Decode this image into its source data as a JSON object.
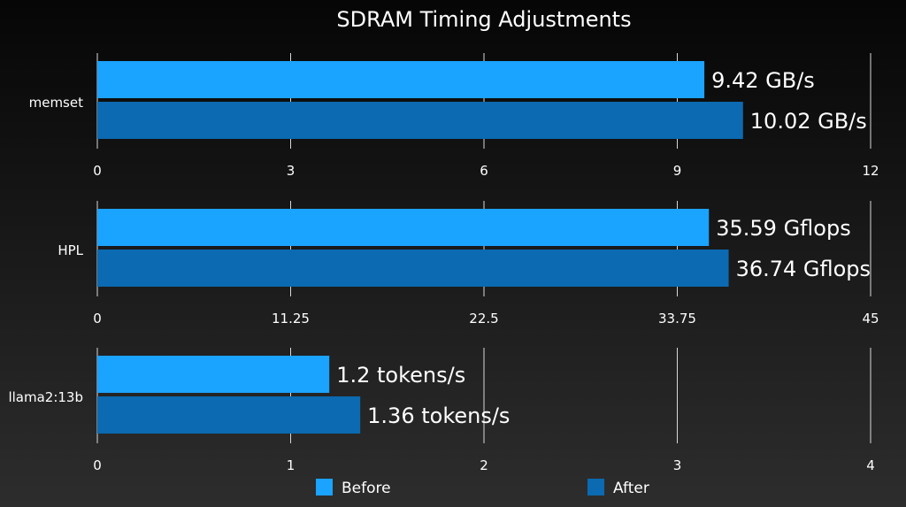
{
  "chart_data": {
    "type": "bar",
    "orientation": "horizontal",
    "title": "SDRAM Timing Adjustments",
    "grid": true,
    "legend_position": "bottom",
    "series": [
      {
        "name": "Before",
        "color": "#1aa3ff"
      },
      {
        "name": "After",
        "color": "#0b6ab1"
      }
    ],
    "panels": [
      {
        "category": "memset",
        "xlim": [
          0,
          12
        ],
        "ticks": [
          "0",
          "3",
          "6",
          "9",
          "12"
        ],
        "tick_values": [
          0,
          3,
          6,
          9,
          12
        ],
        "values": [
          9.42,
          10.02
        ],
        "labels": [
          "9.42 GB/s",
          "10.02 GB/s"
        ]
      },
      {
        "category": "HPL",
        "xlim": [
          0,
          45
        ],
        "ticks": [
          "0",
          "11.25",
          "22.5",
          "33.75",
          "45"
        ],
        "tick_values": [
          0,
          11.25,
          22.5,
          33.75,
          45
        ],
        "values": [
          35.59,
          36.74
        ],
        "labels": [
          "35.59 Gflops",
          "36.74 Gflops"
        ]
      },
      {
        "category": "llama2:13b",
        "xlim": [
          0,
          4
        ],
        "ticks": [
          "0",
          "1",
          "2",
          "3",
          "4"
        ],
        "tick_values": [
          0,
          1,
          2,
          3,
          4
        ],
        "values": [
          1.2,
          1.36
        ],
        "labels": [
          "1.2 tokens/s",
          "1.36 tokens/s"
        ]
      }
    ]
  }
}
